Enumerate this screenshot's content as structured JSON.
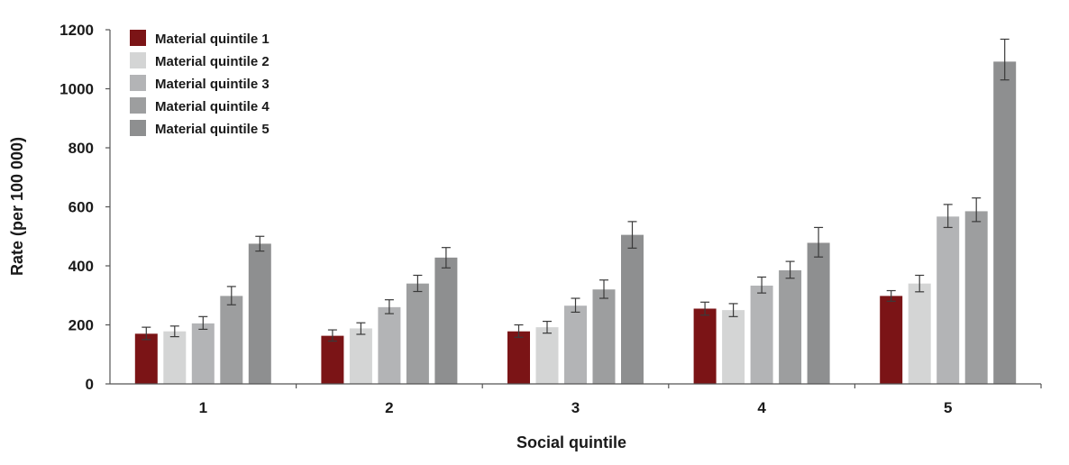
{
  "chart_data": {
    "type": "bar",
    "title": "",
    "xlabel": "Social quintile",
    "ylabel": "Rate (per 100 000)",
    "ylim": [
      0,
      1200
    ],
    "yticks": [
      0,
      200,
      400,
      600,
      800,
      1000,
      1200
    ],
    "categories": [
      "1",
      "2",
      "3",
      "4",
      "5"
    ],
    "series": [
      {
        "name": "Material quintile 1",
        "color": "#7b1416",
        "values": [
          170,
          163,
          178,
          255,
          298
        ],
        "lower": [
          150,
          145,
          158,
          233,
          280
        ],
        "upper": [
          192,
          183,
          200,
          277,
          316
        ]
      },
      {
        "name": "Material quintile 2",
        "color": "#d4d5d5",
        "values": [
          178,
          188,
          192,
          250,
          340
        ],
        "lower": [
          160,
          168,
          172,
          228,
          312
        ],
        "upper": [
          196,
          207,
          212,
          272,
          368
        ]
      },
      {
        "name": "Material quintile 3",
        "color": "#b3b4b6",
        "values": [
          205,
          260,
          265,
          333,
          567
        ],
        "lower": [
          185,
          238,
          243,
          308,
          530
        ],
        "upper": [
          228,
          285,
          290,
          362,
          608
        ]
      },
      {
        "name": "Material quintile 4",
        "color": "#9d9e9f",
        "values": [
          298,
          340,
          320,
          385,
          585
        ],
        "lower": [
          268,
          313,
          290,
          358,
          550
        ],
        "upper": [
          330,
          368,
          352,
          415,
          630
        ]
      },
      {
        "name": "Material quintile 5",
        "color": "#8e8f90",
        "values": [
          475,
          428,
          505,
          478,
          1092
        ],
        "lower": [
          450,
          393,
          460,
          430,
          1030
        ],
        "upper": [
          500,
          462,
          550,
          530,
          1168
        ]
      }
    ],
    "legend_position": "top-left"
  }
}
